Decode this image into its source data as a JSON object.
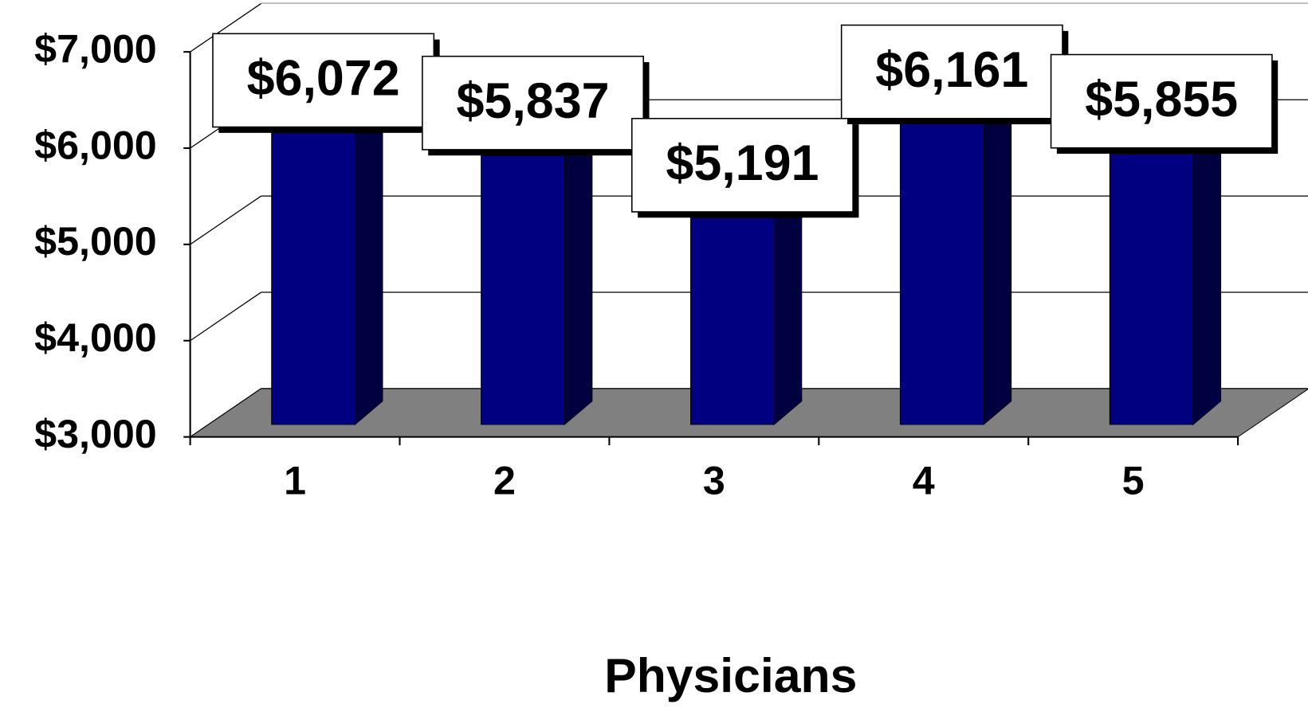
{
  "chart_data": {
    "type": "bar",
    "x_label": "Physicians",
    "categories": [
      "1",
      "2",
      "3",
      "4",
      "5"
    ],
    "values": [
      6072,
      5837,
      5191,
      6161,
      5855
    ],
    "value_labels": [
      "$6,072",
      "$5,837",
      "$5,191",
      "$6,161",
      "$5,855"
    ],
    "color": "#000080",
    "ylim": [
      3000,
      7000
    ],
    "yticks": [
      {
        "value": 3000,
        "label": "$3,000"
      },
      {
        "value": 4000,
        "label": "$4,000"
      },
      {
        "value": 5000,
        "label": "$5,000"
      },
      {
        "value": 6000,
        "label": "$6,000"
      },
      {
        "value": 7000,
        "label": "$7,000"
      }
    ],
    "grid": true
  }
}
